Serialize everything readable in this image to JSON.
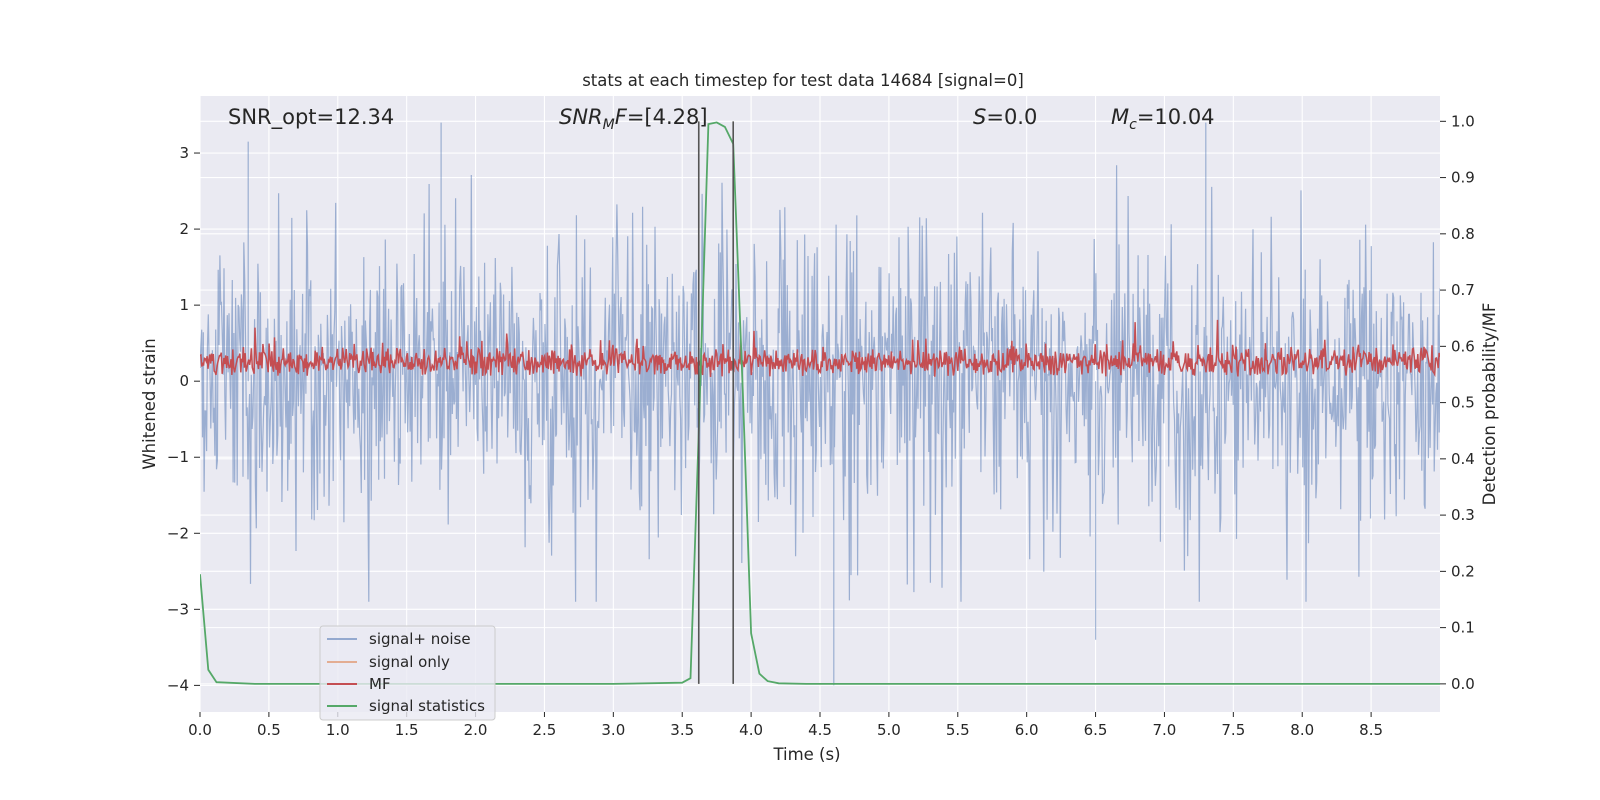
{
  "chart_data": {
    "type": "line",
    "title": "stats at each timestep for test data 14684 [signal=0]",
    "xlabel": "Time (s)",
    "ylabel": "Whitened strain",
    "ylabel_right": "Detection probability/MF",
    "xlim": [
      0,
      9.0
    ],
    "ylim": [
      -4.35,
      3.75
    ],
    "ylim_right": [
      -0.05,
      1.045
    ],
    "x_ticks": [
      "0.0",
      "0.5",
      "1.0",
      "1.5",
      "2.0",
      "2.5",
      "3.0",
      "3.5",
      "4.0",
      "4.5",
      "5.0",
      "5.5",
      "6.0",
      "6.5",
      "7.0",
      "7.5",
      "8.0",
      "8.5"
    ],
    "y_ticks": [
      "3",
      "2",
      "1",
      "0",
      "−1",
      "−2",
      "−3",
      "−4"
    ],
    "y_ticks_right": [
      "1.0",
      "0.9",
      "0.8",
      "0.7",
      "0.6",
      "0.5",
      "0.4",
      "0.3",
      "0.2",
      "0.1",
      "0.0"
    ],
    "grid": true,
    "legend_position": "lower-left",
    "annotations": [
      {
        "text": "SNR_opt=12.34",
        "x": 0.2
      },
      {
        "text": "SNR_MF=[4.28]",
        "x": 2.6
      },
      {
        "text": "S=0.0",
        "x": 5.6
      },
      {
        "text": "M_c=10.04",
        "x": 6.6
      }
    ],
    "vertical_lines": [
      3.62,
      3.87
    ],
    "series": [
      {
        "name": "signal+ noise",
        "color": "#4c72b0",
        "axis": "left",
        "description": "dense whitened noise trace oscillating roughly between -2.5 and 2.5, occasional spikes to about 3.4 and -4.0",
        "extremes": [
          {
            "x": 0.35,
            "y": 3.15
          },
          {
            "x": 1.75,
            "y": 3.4
          },
          {
            "x": 7.3,
            "y": 3.4
          },
          {
            "x": 4.6,
            "y": -4.0
          },
          {
            "x": 6.5,
            "y": -3.4
          }
        ]
      },
      {
        "name": "signal only",
        "color": "#dd8452",
        "axis": "left",
        "values": []
      },
      {
        "name": "MF",
        "color": "#c44e52",
        "axis": "left",
        "description": "matched-filter trace fluctuating between about 0 and 0.9, centred near 0.3"
      },
      {
        "name": "signal statistics",
        "color": "#55a868",
        "axis": "right",
        "x": [
          0.0,
          0.06,
          0.12,
          0.2,
          0.4,
          1.0,
          2.0,
          3.0,
          3.5,
          3.56,
          3.62,
          3.69,
          3.75,
          3.81,
          3.87,
          3.94,
          4.0,
          4.06,
          4.12,
          4.2,
          4.4,
          5.0,
          6.0,
          7.0,
          8.0,
          9.0
        ],
        "y": [
          0.195,
          0.025,
          0.003,
          0.002,
          0.0,
          0.0,
          0.0,
          0.0,
          0.002,
          0.01,
          0.45,
          0.995,
          0.998,
          0.99,
          0.96,
          0.52,
          0.09,
          0.018,
          0.005,
          0.001,
          0.0,
          0.0,
          0.0,
          0.0,
          0.0,
          0.0
        ]
      }
    ]
  }
}
